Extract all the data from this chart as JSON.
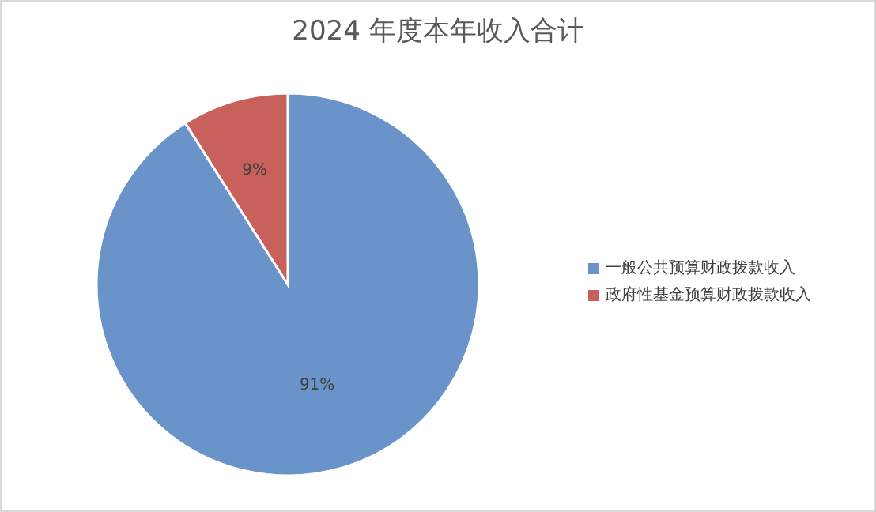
{
  "chart_data": {
    "type": "pie",
    "title": "2024 年度本年收入合计",
    "categories": [
      "一般公共预算财政拨款收入",
      "政府性基金预算财政拨款收入"
    ],
    "values": [
      91,
      9
    ],
    "colors": [
      "#6a93c9",
      "#c8605c"
    ],
    "value_labels": [
      "91%",
      "9%"
    ],
    "legend": "right"
  }
}
